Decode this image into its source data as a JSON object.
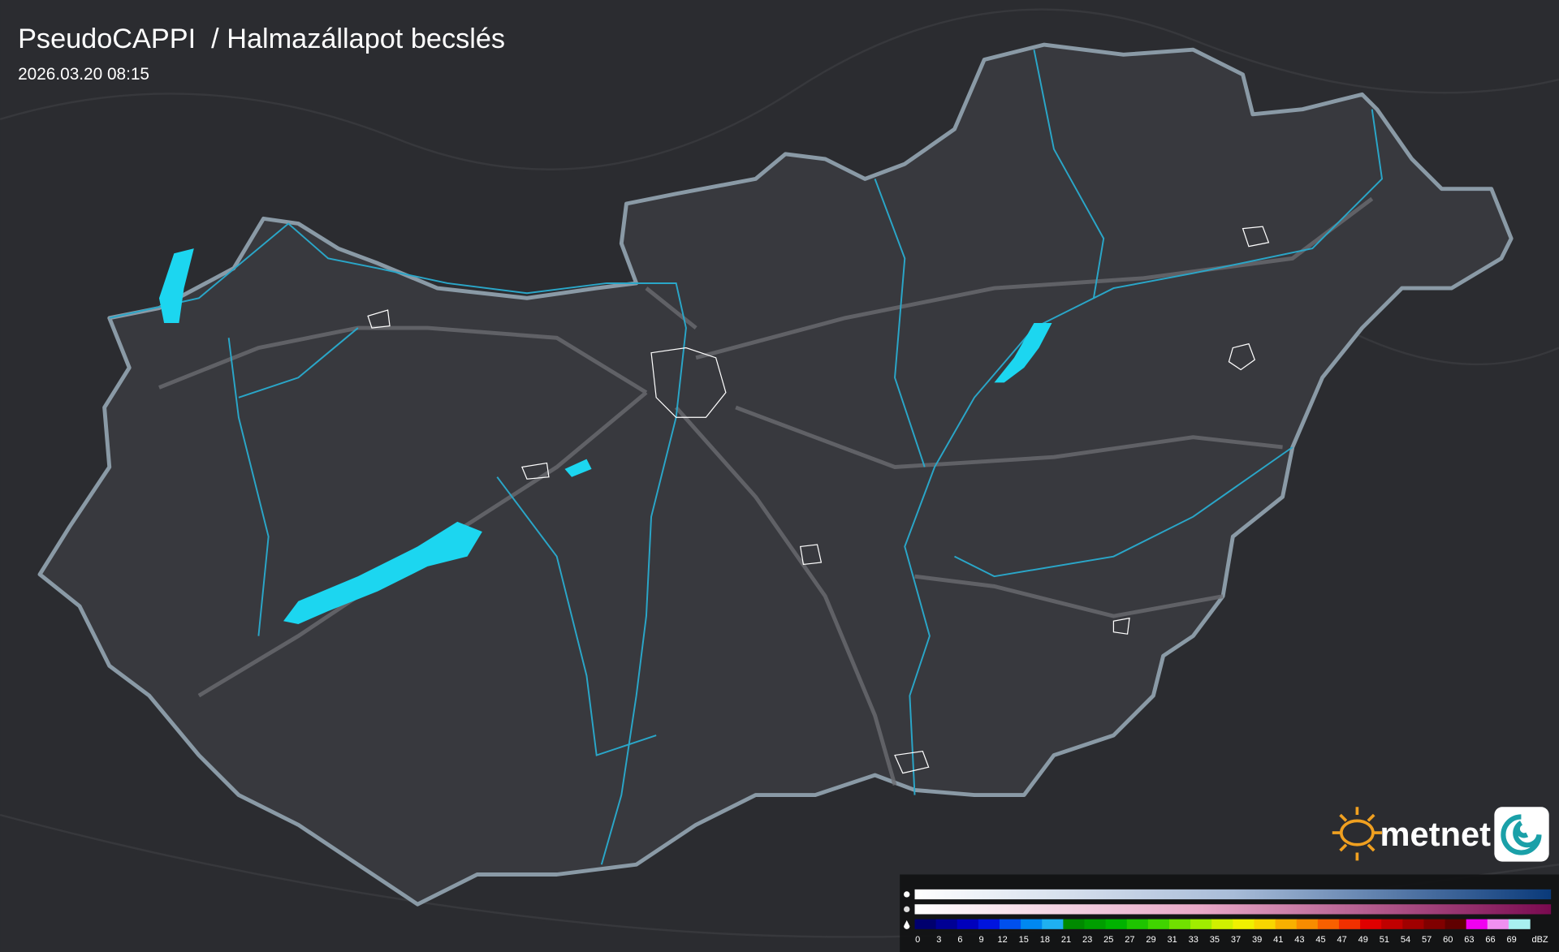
{
  "header": {
    "title": "PseudoCAPPI  / Halmazállapot becslés",
    "timestamp": "2026.03.20 08:15"
  },
  "brand": "metnet",
  "legend": {
    "unit": "dBZ",
    "steps": [
      {
        "label": "0",
        "color": "#00006e"
      },
      {
        "label": "3",
        "color": "#000094"
      },
      {
        "label": "6",
        "color": "#0000bc"
      },
      {
        "label": "9",
        "color": "#0014de"
      },
      {
        "label": "12",
        "color": "#0050ee"
      },
      {
        "label": "15",
        "color": "#0088f0"
      },
      {
        "label": "18",
        "color": "#1fb0f0"
      },
      {
        "label": "21",
        "color": "#008a00"
      },
      {
        "label": "23",
        "color": "#009e00"
      },
      {
        "label": "25",
        "color": "#00b200"
      },
      {
        "label": "27",
        "color": "#1ec400"
      },
      {
        "label": "29",
        "color": "#40d400"
      },
      {
        "label": "31",
        "color": "#70e000"
      },
      {
        "label": "33",
        "color": "#a0ec00"
      },
      {
        "label": "35",
        "color": "#d0f000"
      },
      {
        "label": "37",
        "color": "#f0f000"
      },
      {
        "label": "39",
        "color": "#f8d600"
      },
      {
        "label": "41",
        "color": "#f8b000"
      },
      {
        "label": "43",
        "color": "#f88c00"
      },
      {
        "label": "45",
        "color": "#f86000"
      },
      {
        "label": "47",
        "color": "#f03000"
      },
      {
        "label": "49",
        "color": "#e00000"
      },
      {
        "label": "51",
        "color": "#c00000"
      },
      {
        "label": "54",
        "color": "#a00000"
      },
      {
        "label": "57",
        "color": "#800000"
      },
      {
        "label": "60",
        "color": "#600000"
      },
      {
        "label": "63",
        "color": "#f000f0"
      },
      {
        "label": "66",
        "color": "#f090f0"
      },
      {
        "label": "69",
        "color": "#a8f0f0"
      }
    ]
  }
}
